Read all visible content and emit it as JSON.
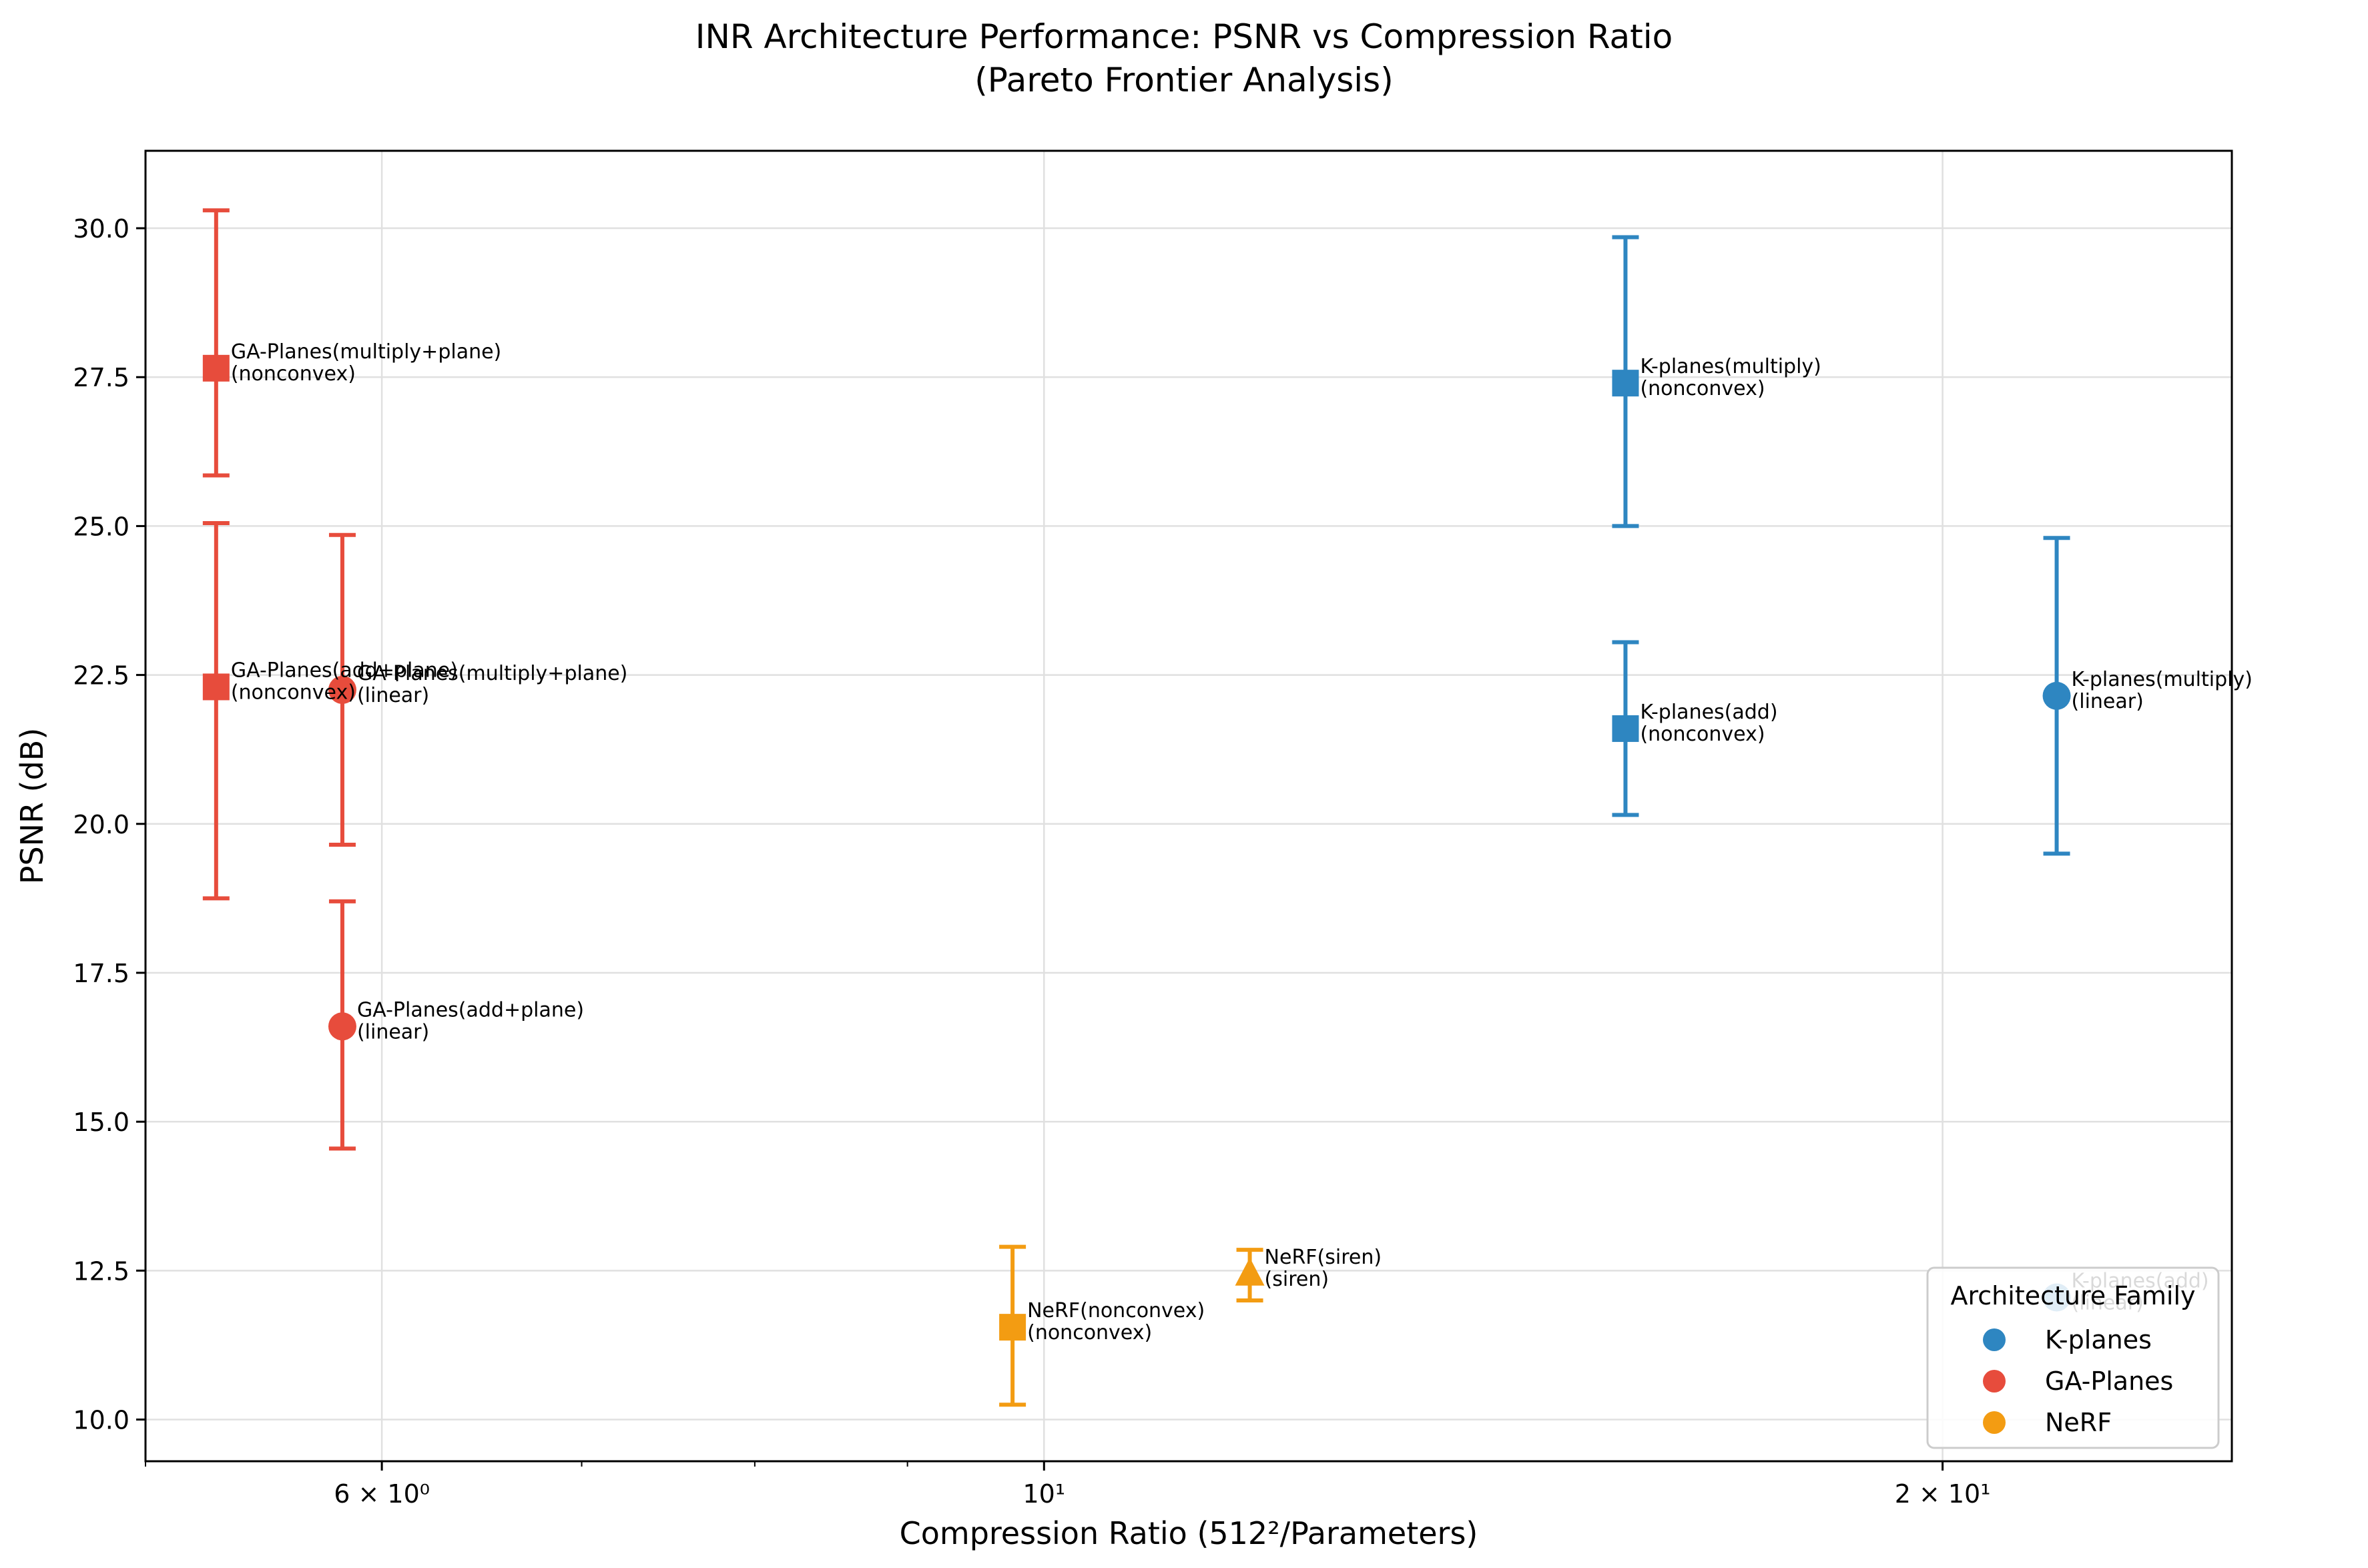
{
  "chart_data": {
    "type": "scatter",
    "title": "INR Architecture Performance: PSNR vs Compression Ratio",
    "subtitle": "(Pareto Frontier Analysis)",
    "xlabel": "Compression Ratio (512²/Parameters)",
    "ylabel": "PSNR (dB)",
    "xscale": "log",
    "xlim": [
      5.0,
      25.0
    ],
    "ylim": [
      9.3,
      31.3
    ],
    "grid": true,
    "x_ticks": [
      {
        "value": 6,
        "label": "6 × 10⁰"
      },
      {
        "value": 10,
        "label": "10¹"
      },
      {
        "value": 20,
        "label": "2 × 10¹"
      }
    ],
    "y_ticks": [
      {
        "value": 10.0,
        "label": "10.0"
      },
      {
        "value": 12.5,
        "label": "12.5"
      },
      {
        "value": 15.0,
        "label": "15.0"
      },
      {
        "value": 17.5,
        "label": "17.5"
      },
      {
        "value": 20.0,
        "label": "20.0"
      },
      {
        "value": 22.5,
        "label": "22.5"
      },
      {
        "value": 25.0,
        "label": "25.0"
      },
      {
        "value": 27.5,
        "label": "27.5"
      },
      {
        "value": 30.0,
        "label": "30.0"
      }
    ],
    "legend": {
      "title": "Architecture Family",
      "placement": "lower-right",
      "entries": [
        {
          "name": "K-planes",
          "color": "#2e86c1"
        },
        {
          "name": "GA-Planes",
          "color": "#e74c3c"
        },
        {
          "name": "NeRF",
          "color": "#f39c12"
        }
      ]
    },
    "points": [
      {
        "family": "GA-Planes",
        "color": "#e74c3c",
        "marker": "square",
        "x": 5.28,
        "y": 27.65,
        "err_low": 25.85,
        "err_high": 30.3,
        "label": [
          "GA-Planes(multiply+plane)",
          "(nonconvex)"
        ]
      },
      {
        "family": "GA-Planes",
        "color": "#e74c3c",
        "marker": "square",
        "x": 5.28,
        "y": 22.3,
        "err_low": 18.75,
        "err_high": 25.05,
        "label": [
          "GA-Planes(add+plane)",
          "(nonconvex)"
        ]
      },
      {
        "family": "GA-Planes",
        "color": "#e74c3c",
        "marker": "circle",
        "x": 5.82,
        "y": 22.25,
        "err_low": 19.65,
        "err_high": 24.85,
        "label": [
          "GA-Planes(multiply+plane)",
          "(linear)"
        ]
      },
      {
        "family": "GA-Planes",
        "color": "#e74c3c",
        "marker": "circle",
        "x": 5.82,
        "y": 16.6,
        "err_low": 14.55,
        "err_high": 18.7,
        "label": [
          "GA-Planes(add+plane)",
          "(linear)"
        ]
      },
      {
        "family": "NeRF",
        "color": "#f39c12",
        "marker": "square",
        "x": 9.76,
        "y": 11.55,
        "err_low": 10.25,
        "err_high": 12.9,
        "label": [
          "NeRF(nonconvex)",
          "(nonconvex)"
        ]
      },
      {
        "family": "NeRF",
        "color": "#f39c12",
        "marker": "triangle",
        "x": 11.72,
        "y": 12.45,
        "err_low": 12.0,
        "err_high": 12.85,
        "label": [
          "NeRF(siren)",
          "(siren)"
        ]
      },
      {
        "family": "K-planes",
        "color": "#2e86c1",
        "marker": "square",
        "x": 15.66,
        "y": 27.4,
        "err_low": 25.0,
        "err_high": 29.85,
        "label": [
          "K-planes(multiply)",
          "(nonconvex)"
        ]
      },
      {
        "family": "K-planes",
        "color": "#2e86c1",
        "marker": "square",
        "x": 15.66,
        "y": 21.6,
        "err_low": 20.15,
        "err_high": 23.05,
        "label": [
          "K-planes(add)",
          "(nonconvex)"
        ]
      },
      {
        "family": "K-planes",
        "color": "#2e86c1",
        "marker": "circle",
        "x": 21.84,
        "y": 22.15,
        "err_low": 19.5,
        "err_high": 24.8,
        "label": [
          "K-planes(multiply)",
          "(linear)"
        ]
      },
      {
        "family": "K-planes",
        "color": "#2e86c1",
        "marker": "circle",
        "x": 21.84,
        "y": 12.05,
        "err_low": null,
        "err_high": null,
        "label": [
          "K-planes(add)",
          "(linear)"
        ]
      }
    ]
  }
}
